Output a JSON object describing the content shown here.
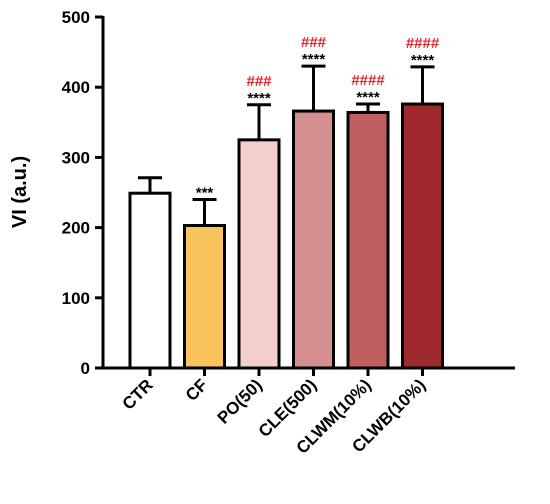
{
  "chart_data": {
    "type": "bar",
    "ylabel": "VI (a.u.)",
    "xlabel": "",
    "ylim": [
      0,
      500
    ],
    "yticks": [
      0,
      100,
      200,
      300,
      400,
      500
    ],
    "categories": [
      "CTR",
      "CF",
      "PO(50)",
      "CLE(500)",
      "CLWM(10%)",
      "CLWB(10%)"
    ],
    "values": [
      249,
      203,
      325,
      366,
      364,
      376
    ],
    "error_upper": [
      22,
      37,
      50,
      64,
      12,
      53
    ],
    "bar_colors": [
      "#ffffff",
      "#f9c45c",
      "#f2cfcd",
      "#d68f8f",
      "#c05f62",
      "#9e2a2e"
    ],
    "stars": [
      "",
      "***",
      "****",
      "****",
      "****",
      "****"
    ],
    "hashes": [
      "",
      "",
      "###",
      "###",
      "####",
      "####"
    ],
    "star_color": "#000000",
    "hash_color": "#e8212b",
    "grid": false,
    "legend": "none"
  }
}
